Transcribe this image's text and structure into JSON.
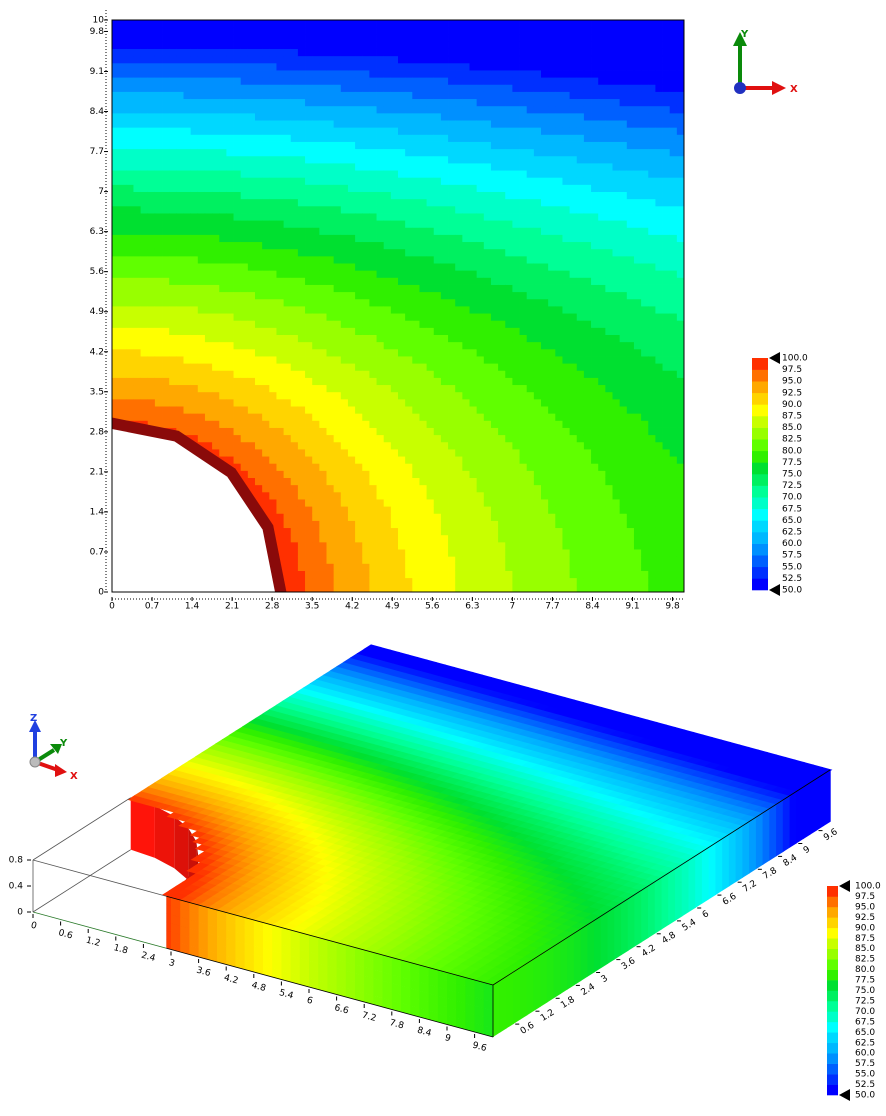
{
  "chart_data": [
    {
      "type": "contour",
      "xlim": [
        0,
        10
      ],
      "ylim": [
        0,
        10
      ],
      "xticks": [
        0,
        0.7,
        1.4,
        2.1,
        2.8,
        3.5,
        4.2,
        4.9,
        5.6,
        6.3,
        7,
        7.7,
        8.4,
        9.1,
        9.8
      ],
      "yticks": [
        0,
        0.7,
        1.4,
        2.1,
        2.8,
        3.5,
        4.2,
        4.9,
        5.6,
        6.3,
        7,
        7.7,
        8.4,
        9.1,
        9.8,
        10
      ],
      "levels": [
        {
          "value": 50,
          "label": "50.0"
        },
        {
          "value": 52.5,
          "label": "52.5"
        },
        {
          "value": 55,
          "label": "55.0"
        },
        {
          "value": 57.5,
          "label": "57.5"
        },
        {
          "value": 60,
          "label": "60.0"
        },
        {
          "value": 62.5,
          "label": "62.5"
        },
        {
          "value": 65,
          "label": "65.0"
        },
        {
          "value": 67.5,
          "label": "67.5"
        },
        {
          "value": 70,
          "label": "70.0"
        },
        {
          "value": 72.5,
          "label": "72.5"
        },
        {
          "value": 75,
          "label": "75.0"
        },
        {
          "value": 77.5,
          "label": "77.5"
        },
        {
          "value": 80,
          "label": "80.0"
        },
        {
          "value": 82.5,
          "label": "82.5"
        },
        {
          "value": 85,
          "label": "85.0"
        },
        {
          "value": 87.5,
          "label": "87.5"
        },
        {
          "value": 90,
          "label": "90.0"
        },
        {
          "value": 92.5,
          "label": "92.5"
        },
        {
          "value": 95,
          "label": "95.0"
        },
        {
          "value": 97.5,
          "label": "97.5"
        },
        {
          "value": 100,
          "label": "100.0"
        }
      ],
      "colors": [
        "#0000ff",
        "#0030ff",
        "#0060ff",
        "#0090ff",
        "#00b8ff",
        "#00d8ff",
        "#00ffff",
        "#00ffc8",
        "#00ff96",
        "#00f060",
        "#00e030",
        "#30f000",
        "#60ff00",
        "#98ff00",
        "#c8ff00",
        "#ffff00",
        "#ffd400",
        "#ffa800",
        "#ff7000",
        "#ff3000"
      ],
      "axis_labels": [
        "X",
        "Y"
      ]
    },
    {
      "type": "surface3d",
      "xlim": [
        0,
        10
      ],
      "ylim": [
        0,
        10
      ],
      "zlim": [
        0,
        0.8
      ],
      "xticks": [
        0,
        0.6,
        1.2,
        1.8,
        2.4,
        3,
        3.6,
        4.2,
        4.8,
        5.4,
        6,
        6.6,
        7.2,
        7.8,
        8.4,
        9,
        9.6
      ],
      "yticks": [
        0.6,
        1.2,
        1.8,
        2.4,
        3,
        3.6,
        4.2,
        4.8,
        5.4,
        6,
        6.6,
        7.2,
        7.8,
        8.4,
        9,
        9.6
      ],
      "zticks": [
        0,
        0.4,
        0.8
      ],
      "levels": [
        {
          "value": 50,
          "label": "50.0"
        },
        {
          "value": 52.5,
          "label": "52.5"
        },
        {
          "value": 55,
          "label": "55.0"
        },
        {
          "value": 57.5,
          "label": "57.5"
        },
        {
          "value": 60,
          "label": "60.0"
        },
        {
          "value": 62.5,
          "label": "62.5"
        },
        {
          "value": 65,
          "label": "65.0"
        },
        {
          "value": 67.5,
          "label": "67.5"
        },
        {
          "value": 70,
          "label": "70.0"
        },
        {
          "value": 72.5,
          "label": "72.5"
        },
        {
          "value": 75,
          "label": "75.0"
        },
        {
          "value": 77.5,
          "label": "77.5"
        },
        {
          "value": 80,
          "label": "80.0"
        },
        {
          "value": 82.5,
          "label": "82.5"
        },
        {
          "value": 85,
          "label": "85.0"
        },
        {
          "value": 87.5,
          "label": "87.5"
        },
        {
          "value": 90,
          "label": "90.0"
        },
        {
          "value": 92.5,
          "label": "92.5"
        },
        {
          "value": 95,
          "label": "95.0"
        },
        {
          "value": 97.5,
          "label": "97.5"
        },
        {
          "value": 100,
          "label": "100.0"
        }
      ],
      "colors": [
        "#0000ff",
        "#0030ff",
        "#0060ff",
        "#0090ff",
        "#00b8ff",
        "#00d8ff",
        "#00ffff",
        "#00ffc8",
        "#00ff96",
        "#00f060",
        "#00e030",
        "#30f000",
        "#60ff00",
        "#98ff00",
        "#c8ff00",
        "#ffff00",
        "#ffd400",
        "#ffa800",
        "#ff7000",
        "#ff3000"
      ],
      "axis_labels": [
        "X",
        "Y",
        "Z"
      ]
    }
  ]
}
